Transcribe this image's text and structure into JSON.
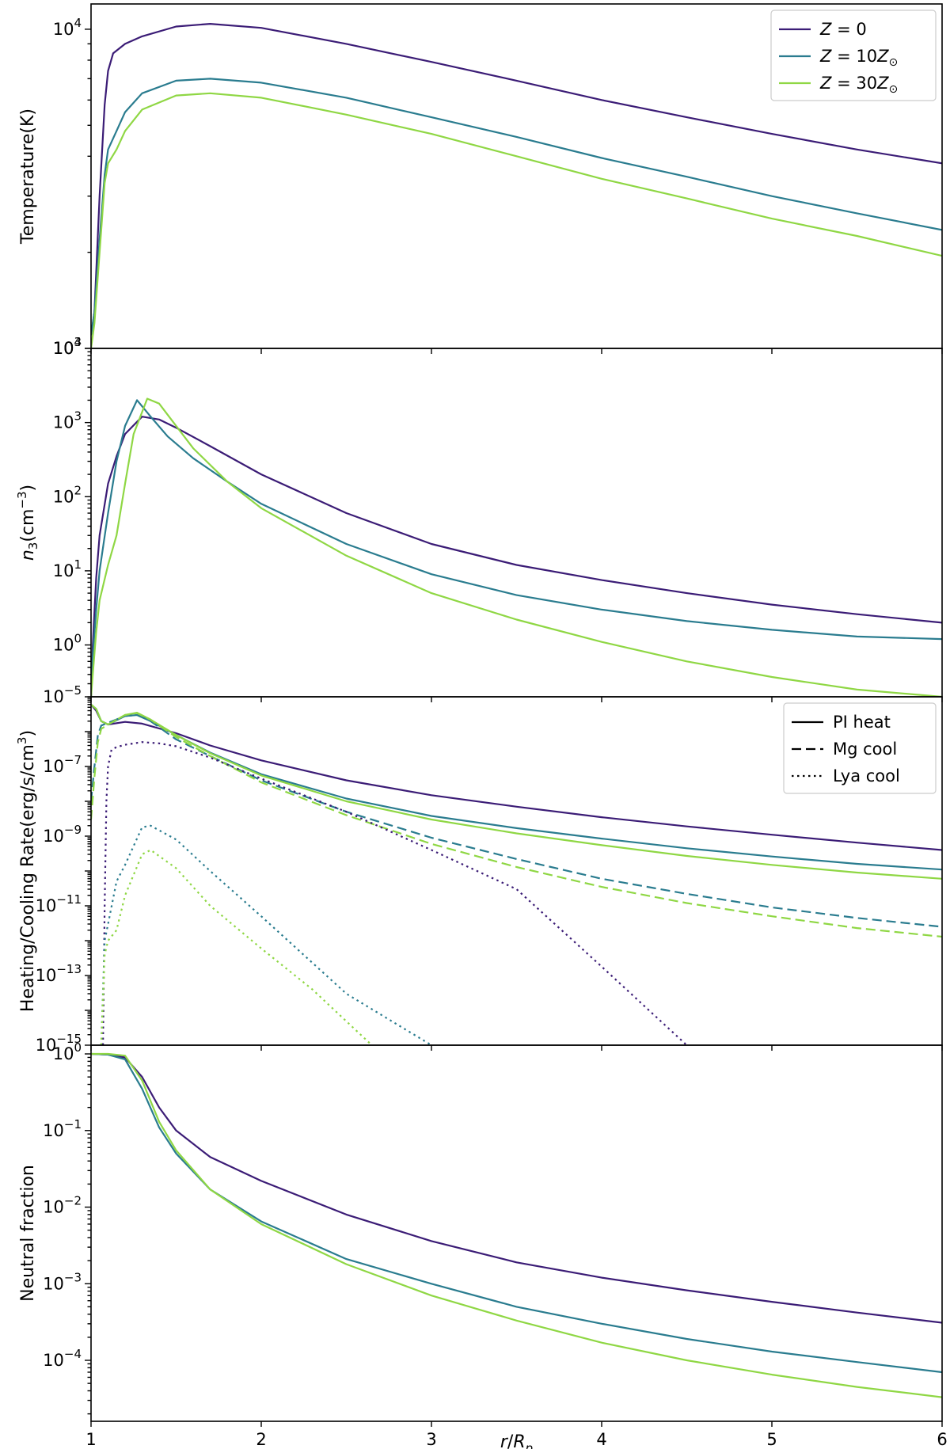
{
  "colors": {
    "Z0": "#3b1c76",
    "Z10": "#2a7c8f",
    "Z30": "#8fd744"
  },
  "chart_data": [
    {
      "type": "line",
      "ylabel": "Temperature(K)",
      "xlabel": "",
      "xlim": [
        1,
        6
      ],
      "ylim": [
        1000,
        12000
      ],
      "yscale": "log",
      "yticks": [
        {
          "v": 1000,
          "base": "10",
          "exp": "3"
        },
        {
          "v": 10000,
          "base": "10",
          "exp": "4"
        }
      ],
      "legend": {
        "position": "top-right",
        "entries": [
          {
            "color_key": "Z0",
            "dash": "solid",
            "label": "Z = 0"
          },
          {
            "color_key": "Z10",
            "dash": "solid",
            "label": "Z = 10Z⊙"
          },
          {
            "color_key": "Z30",
            "dash": "solid",
            "label": "Z = 30Z⊙"
          }
        ]
      },
      "series": [
        {
          "name": "Z = 0",
          "color_key": "Z0",
          "dash": "solid",
          "x": [
            1.0,
            1.02,
            1.05,
            1.08,
            1.1,
            1.13,
            1.2,
            1.3,
            1.5,
            1.7,
            2.0,
            2.5,
            3.0,
            3.5,
            4.0,
            4.5,
            5.0,
            5.5,
            6.0
          ],
          "y": [
            1100,
            1300,
            3000,
            5800,
            7400,
            8400,
            9000,
            9500,
            10200,
            10400,
            10100,
            9000,
            7900,
            6900,
            6000,
            5300,
            4700,
            4200,
            3800
          ]
        },
        {
          "name": "Z = 10Z⊙",
          "color_key": "Z10",
          "dash": "solid",
          "x": [
            1.0,
            1.02,
            1.05,
            1.08,
            1.1,
            1.15,
            1.2,
            1.3,
            1.5,
            1.7,
            2.0,
            2.5,
            3.0,
            3.5,
            4.0,
            4.5,
            5.0,
            5.5,
            6.0
          ],
          "y": [
            1100,
            1300,
            2200,
            3500,
            4200,
            4800,
            5500,
            6300,
            6900,
            7000,
            6800,
            6100,
            5300,
            4600,
            3950,
            3450,
            3000,
            2650,
            2350
          ]
        },
        {
          "name": "Z = 30Z⊙",
          "color_key": "Z30",
          "dash": "solid",
          "x": [
            1.0,
            1.02,
            1.05,
            1.08,
            1.1,
            1.15,
            1.2,
            1.3,
            1.5,
            1.7,
            2.0,
            2.5,
            3.0,
            3.5,
            4.0,
            4.5,
            5.0,
            5.5,
            6.0
          ],
          "y": [
            1000,
            1200,
            2000,
            3300,
            3800,
            4200,
            4800,
            5600,
            6200,
            6300,
            6100,
            5400,
            4700,
            4000,
            3400,
            2950,
            2550,
            2250,
            1950
          ]
        }
      ]
    },
    {
      "type": "line",
      "ylabel": "n3(cm−3)",
      "xlabel": "",
      "xlim": [
        1,
        6
      ],
      "ylim": [
        0.2,
        10000
      ],
      "yscale": "log",
      "yticks": [
        {
          "v": 1,
          "base": "10",
          "exp": "0"
        },
        {
          "v": 10,
          "base": "10",
          "exp": "1"
        },
        {
          "v": 100,
          "base": "10",
          "exp": "2"
        },
        {
          "v": 1000,
          "base": "10",
          "exp": "3"
        },
        {
          "v": 10000,
          "base": "10",
          "exp": "4"
        }
      ],
      "series": [
        {
          "name": "Z = 0",
          "color_key": "Z0",
          "dash": "solid",
          "x": [
            1.0,
            1.01,
            1.03,
            1.05,
            1.1,
            1.15,
            1.2,
            1.3,
            1.4,
            1.5,
            1.7,
            2.0,
            2.5,
            3.0,
            3.5,
            4.0,
            4.5,
            5.0,
            5.5,
            6.0
          ],
          "y": [
            0.2,
            1.0,
            8,
            30,
            150,
            350,
            700,
            1200,
            1100,
            850,
            480,
            200,
            60,
            23,
            12,
            7.5,
            5.0,
            3.5,
            2.6,
            2.0
          ]
        },
        {
          "name": "Z = 10Z⊙",
          "color_key": "Z10",
          "dash": "solid",
          "x": [
            1.0,
            1.01,
            1.03,
            1.05,
            1.1,
            1.15,
            1.2,
            1.27,
            1.35,
            1.45,
            1.6,
            1.8,
            2.0,
            2.5,
            3.0,
            3.5,
            4.0,
            4.5,
            5.0,
            5.5,
            6.0
          ],
          "y": [
            0.2,
            0.7,
            3,
            10,
            60,
            300,
            900,
            2000,
            1200,
            650,
            330,
            160,
            80,
            23,
            9,
            4.7,
            3.0,
            2.1,
            1.6,
            1.3,
            1.2
          ]
        },
        {
          "name": "Z = 30Z⊙",
          "color_key": "Z30",
          "dash": "solid",
          "x": [
            1.0,
            1.01,
            1.03,
            1.05,
            1.1,
            1.15,
            1.2,
            1.25,
            1.33,
            1.4,
            1.5,
            1.6,
            1.8,
            2.0,
            2.5,
            3.0,
            3.5,
            4.0,
            4.5,
            5.0,
            5.5,
            6.0
          ],
          "y": [
            0.2,
            0.4,
            1.5,
            4,
            12,
            30,
            150,
            700,
            2100,
            1800,
            900,
            450,
            160,
            70,
            16,
            5,
            2.2,
            1.1,
            0.6,
            0.37,
            0.25,
            0.2
          ]
        }
      ]
    },
    {
      "type": "line",
      "ylabel": "Heating/Cooling Rate(erg/s/cm3)",
      "xlabel": "",
      "xlim": [
        1,
        6
      ],
      "ylim": [
        1e-15,
        1e-05
      ],
      "yscale": "log",
      "yticks": [
        {
          "v": 1e-15,
          "base": "10",
          "exp": "−15"
        },
        {
          "v": 1e-13,
          "base": "10",
          "exp": "−13"
        },
        {
          "v": 1e-11,
          "base": "10",
          "exp": "−11"
        },
        {
          "v": 1e-09,
          "base": "10",
          "exp": "−9"
        },
        {
          "v": 1e-07,
          "base": "10",
          "exp": "−7"
        },
        {
          "v": 1e-05,
          "base": "10",
          "exp": "−5"
        }
      ],
      "legend": {
        "position": "top-right",
        "entries": [
          {
            "color_key": "black",
            "dash": "solid",
            "label": "PI heat"
          },
          {
            "color_key": "black",
            "dash": "dashed",
            "label": "Mg cool"
          },
          {
            "color_key": "black",
            "dash": "dotted",
            "label": "Lya cool"
          }
        ]
      },
      "series": [
        {
          "name": "PI heat Z = 0",
          "color_key": "Z0",
          "dash": "solid",
          "x": [
            1.0,
            1.03,
            1.06,
            1.1,
            1.2,
            1.3,
            1.5,
            1.7,
            2.0,
            2.5,
            3.0,
            3.5,
            4.0,
            4.5,
            5.0,
            5.5,
            6.0
          ],
          "y": [
            6e-06,
            4e-06,
            2e-06,
            1.6e-06,
            1.9e-06,
            1.7e-06,
            9e-07,
            4e-07,
            1.5e-07,
            4e-08,
            1.5e-08,
            7e-09,
            3.5e-09,
            1.9e-09,
            1.1e-09,
            6.5e-10,
            4e-10
          ]
        },
        {
          "name": "PI heat Z = 10Z⊙",
          "color_key": "Z10",
          "dash": "solid",
          "x": [
            1.0,
            1.03,
            1.06,
            1.1,
            1.2,
            1.27,
            1.35,
            1.5,
            1.7,
            2.0,
            2.5,
            3.0,
            3.5,
            4.0,
            4.5,
            5.0,
            5.5,
            6.0
          ],
          "y": [
            6e-06,
            4.5e-06,
            2e-06,
            1.6e-06,
            2.8e-06,
            3e-06,
            2e-06,
            8e-07,
            2.5e-07,
            6e-08,
            1.2e-08,
            3.8e-09,
            1.7e-09,
            8.5e-10,
            4.5e-10,
            2.6e-10,
            1.6e-10,
            1.1e-10
          ]
        },
        {
          "name": "PI heat Z = 30Z⊙",
          "color_key": "Z30",
          "dash": "solid",
          "x": [
            1.0,
            1.03,
            1.06,
            1.1,
            1.2,
            1.27,
            1.35,
            1.5,
            1.7,
            2.0,
            2.5,
            3.0,
            3.5,
            4.0,
            4.5,
            5.0,
            5.5,
            6.0
          ],
          "y": [
            6e-06,
            4.5e-06,
            2e-06,
            1.6e-06,
            3e-06,
            3.5e-06,
            2.2e-06,
            8e-07,
            2.4e-07,
            5.5e-08,
            1e-08,
            3e-09,
            1.2e-09,
            5.5e-10,
            2.7e-10,
            1.5e-10,
            9e-11,
            6e-11
          ]
        },
        {
          "name": "Mg cool Z = 10Z⊙",
          "color_key": "Z10",
          "dash": "dashed",
          "x": [
            1.0,
            1.02,
            1.04,
            1.06,
            1.1,
            1.2,
            1.27,
            1.35,
            1.5,
            1.7,
            2.0,
            2.5,
            3.0,
            3.5,
            4.0,
            4.5,
            5.0,
            5.5,
            6.0
          ],
          "y": [
            1e-08,
            1e-07,
            8e-07,
            1.5e-06,
            1.8e-06,
            2.8e-06,
            3e-06,
            2e-06,
            6e-07,
            2e-07,
            4e-08,
            5e-09,
            9e-10,
            2.2e-10,
            6e-11,
            2.2e-11,
            9e-12,
            4.5e-12,
            2.5e-12
          ]
        },
        {
          "name": "Mg cool Z = 30Z⊙",
          "color_key": "Z30",
          "dash": "dashed",
          "x": [
            1.0,
            1.02,
            1.04,
            1.06,
            1.1,
            1.2,
            1.27,
            1.35,
            1.5,
            1.7,
            2.0,
            2.5,
            3.0,
            3.5,
            4.0,
            4.5,
            5.0,
            5.5,
            6.0
          ],
          "y": [
            3e-09,
            5e-08,
            5e-07,
            1.2e-06,
            1.6e-06,
            3e-06,
            3.4e-06,
            2.2e-06,
            7e-07,
            2e-07,
            3.5e-08,
            4e-09,
            6e-10,
            1.3e-10,
            3.5e-11,
            1.2e-11,
            5e-12,
            2.3e-12,
            1.3e-12
          ]
        },
        {
          "name": "Lya cool Z = 0",
          "color_key": "Z0",
          "dash": "dotted",
          "x": [
            1.07,
            1.08,
            1.09,
            1.1,
            1.12,
            1.15,
            1.2,
            1.3,
            1.4,
            1.5,
            1.7,
            2.0,
            2.5,
            3.0,
            3.5,
            4.0,
            4.5
          ],
          "y": [
            1e-15,
            1e-11,
            1e-08,
            1e-07,
            3e-07,
            3.6e-07,
            4.2e-07,
            5e-07,
            4.6e-07,
            3.8e-07,
            1.8e-07,
            4.5e-08,
            5e-09,
            4e-10,
            3e-11,
            1.8e-13,
            1e-15
          ]
        },
        {
          "name": "Lya cool Z = 10Z⊙",
          "color_key": "Z10",
          "dash": "dotted",
          "x": [
            1.06,
            1.08,
            1.1,
            1.15,
            1.2,
            1.3,
            1.35,
            1.5,
            1.7,
            2.0,
            2.5,
            3.0
          ],
          "y": [
            1e-15,
            1e-12,
            3e-12,
            5e-11,
            1.5e-10,
            1.8e-09,
            2e-09,
            8e-10,
            1e-10,
            5e-12,
            3e-14,
            1e-15
          ]
        },
        {
          "name": "Lya cool Z = 30Z⊙",
          "color_key": "Z30",
          "dash": "dotted",
          "x": [
            1.06,
            1.08,
            1.1,
            1.15,
            1.2,
            1.3,
            1.35,
            1.5,
            1.7,
            2.0,
            2.3,
            2.65
          ],
          "y": [
            1e-15,
            4e-13,
            1e-12,
            2e-12,
            2e-11,
            3e-10,
            4e-10,
            1.2e-10,
            1e-11,
            6e-13,
            4e-14,
            1e-15
          ]
        }
      ]
    },
    {
      "type": "line",
      "ylabel": "Neutral fraction",
      "xlabel": "r/Rp",
      "xlim": [
        1,
        6
      ],
      "ylim": [
        1.6e-05,
        1.3
      ],
      "yscale": "log",
      "xticks": [
        "1",
        "2",
        "3",
        "4",
        "5",
        "6"
      ],
      "yticks": [
        {
          "v": 0.0001,
          "base": "10",
          "exp": "−4"
        },
        {
          "v": 0.001,
          "base": "10",
          "exp": "−3"
        },
        {
          "v": 0.01,
          "base": "10",
          "exp": "−2"
        },
        {
          "v": 0.1,
          "base": "10",
          "exp": "−1"
        },
        {
          "v": 1,
          "base": "10",
          "exp": "0"
        }
      ],
      "series": [
        {
          "name": "Z = 0",
          "color_key": "Z0",
          "dash": "solid",
          "x": [
            1.0,
            1.1,
            1.2,
            1.3,
            1.4,
            1.5,
            1.7,
            2.0,
            2.5,
            3.0,
            3.5,
            4.0,
            4.5,
            5.0,
            5.5,
            6.0
          ],
          "y": [
            1.0,
            0.98,
            0.9,
            0.5,
            0.2,
            0.1,
            0.045,
            0.022,
            0.008,
            0.0036,
            0.0019,
            0.0012,
            0.00082,
            0.00058,
            0.00042,
            0.00031
          ]
        },
        {
          "name": "Z = 10Z⊙",
          "color_key": "Z10",
          "dash": "solid",
          "x": [
            1.0,
            1.1,
            1.2,
            1.3,
            1.4,
            1.5,
            1.7,
            2.0,
            2.5,
            3.0,
            3.5,
            4.0,
            4.5,
            5.0,
            5.5,
            6.0
          ],
          "y": [
            1.0,
            0.98,
            0.85,
            0.35,
            0.11,
            0.05,
            0.017,
            0.0065,
            0.0021,
            0.001,
            0.0005,
            0.0003,
            0.00019,
            0.00013,
            9.5e-05,
            7e-05
          ]
        },
        {
          "name": "Z = 30Z⊙",
          "color_key": "Z30",
          "dash": "solid",
          "x": [
            1.0,
            1.1,
            1.2,
            1.3,
            1.4,
            1.5,
            1.7,
            2.0,
            2.5,
            3.0,
            3.5,
            4.0,
            4.5,
            5.0,
            5.5,
            6.0
          ],
          "y": [
            1.0,
            1.0,
            0.95,
            0.45,
            0.13,
            0.055,
            0.017,
            0.006,
            0.0018,
            0.0007,
            0.00033,
            0.00017,
            0.0001,
            6.5e-05,
            4.5e-05,
            3.3e-05
          ]
        }
      ]
    }
  ]
}
